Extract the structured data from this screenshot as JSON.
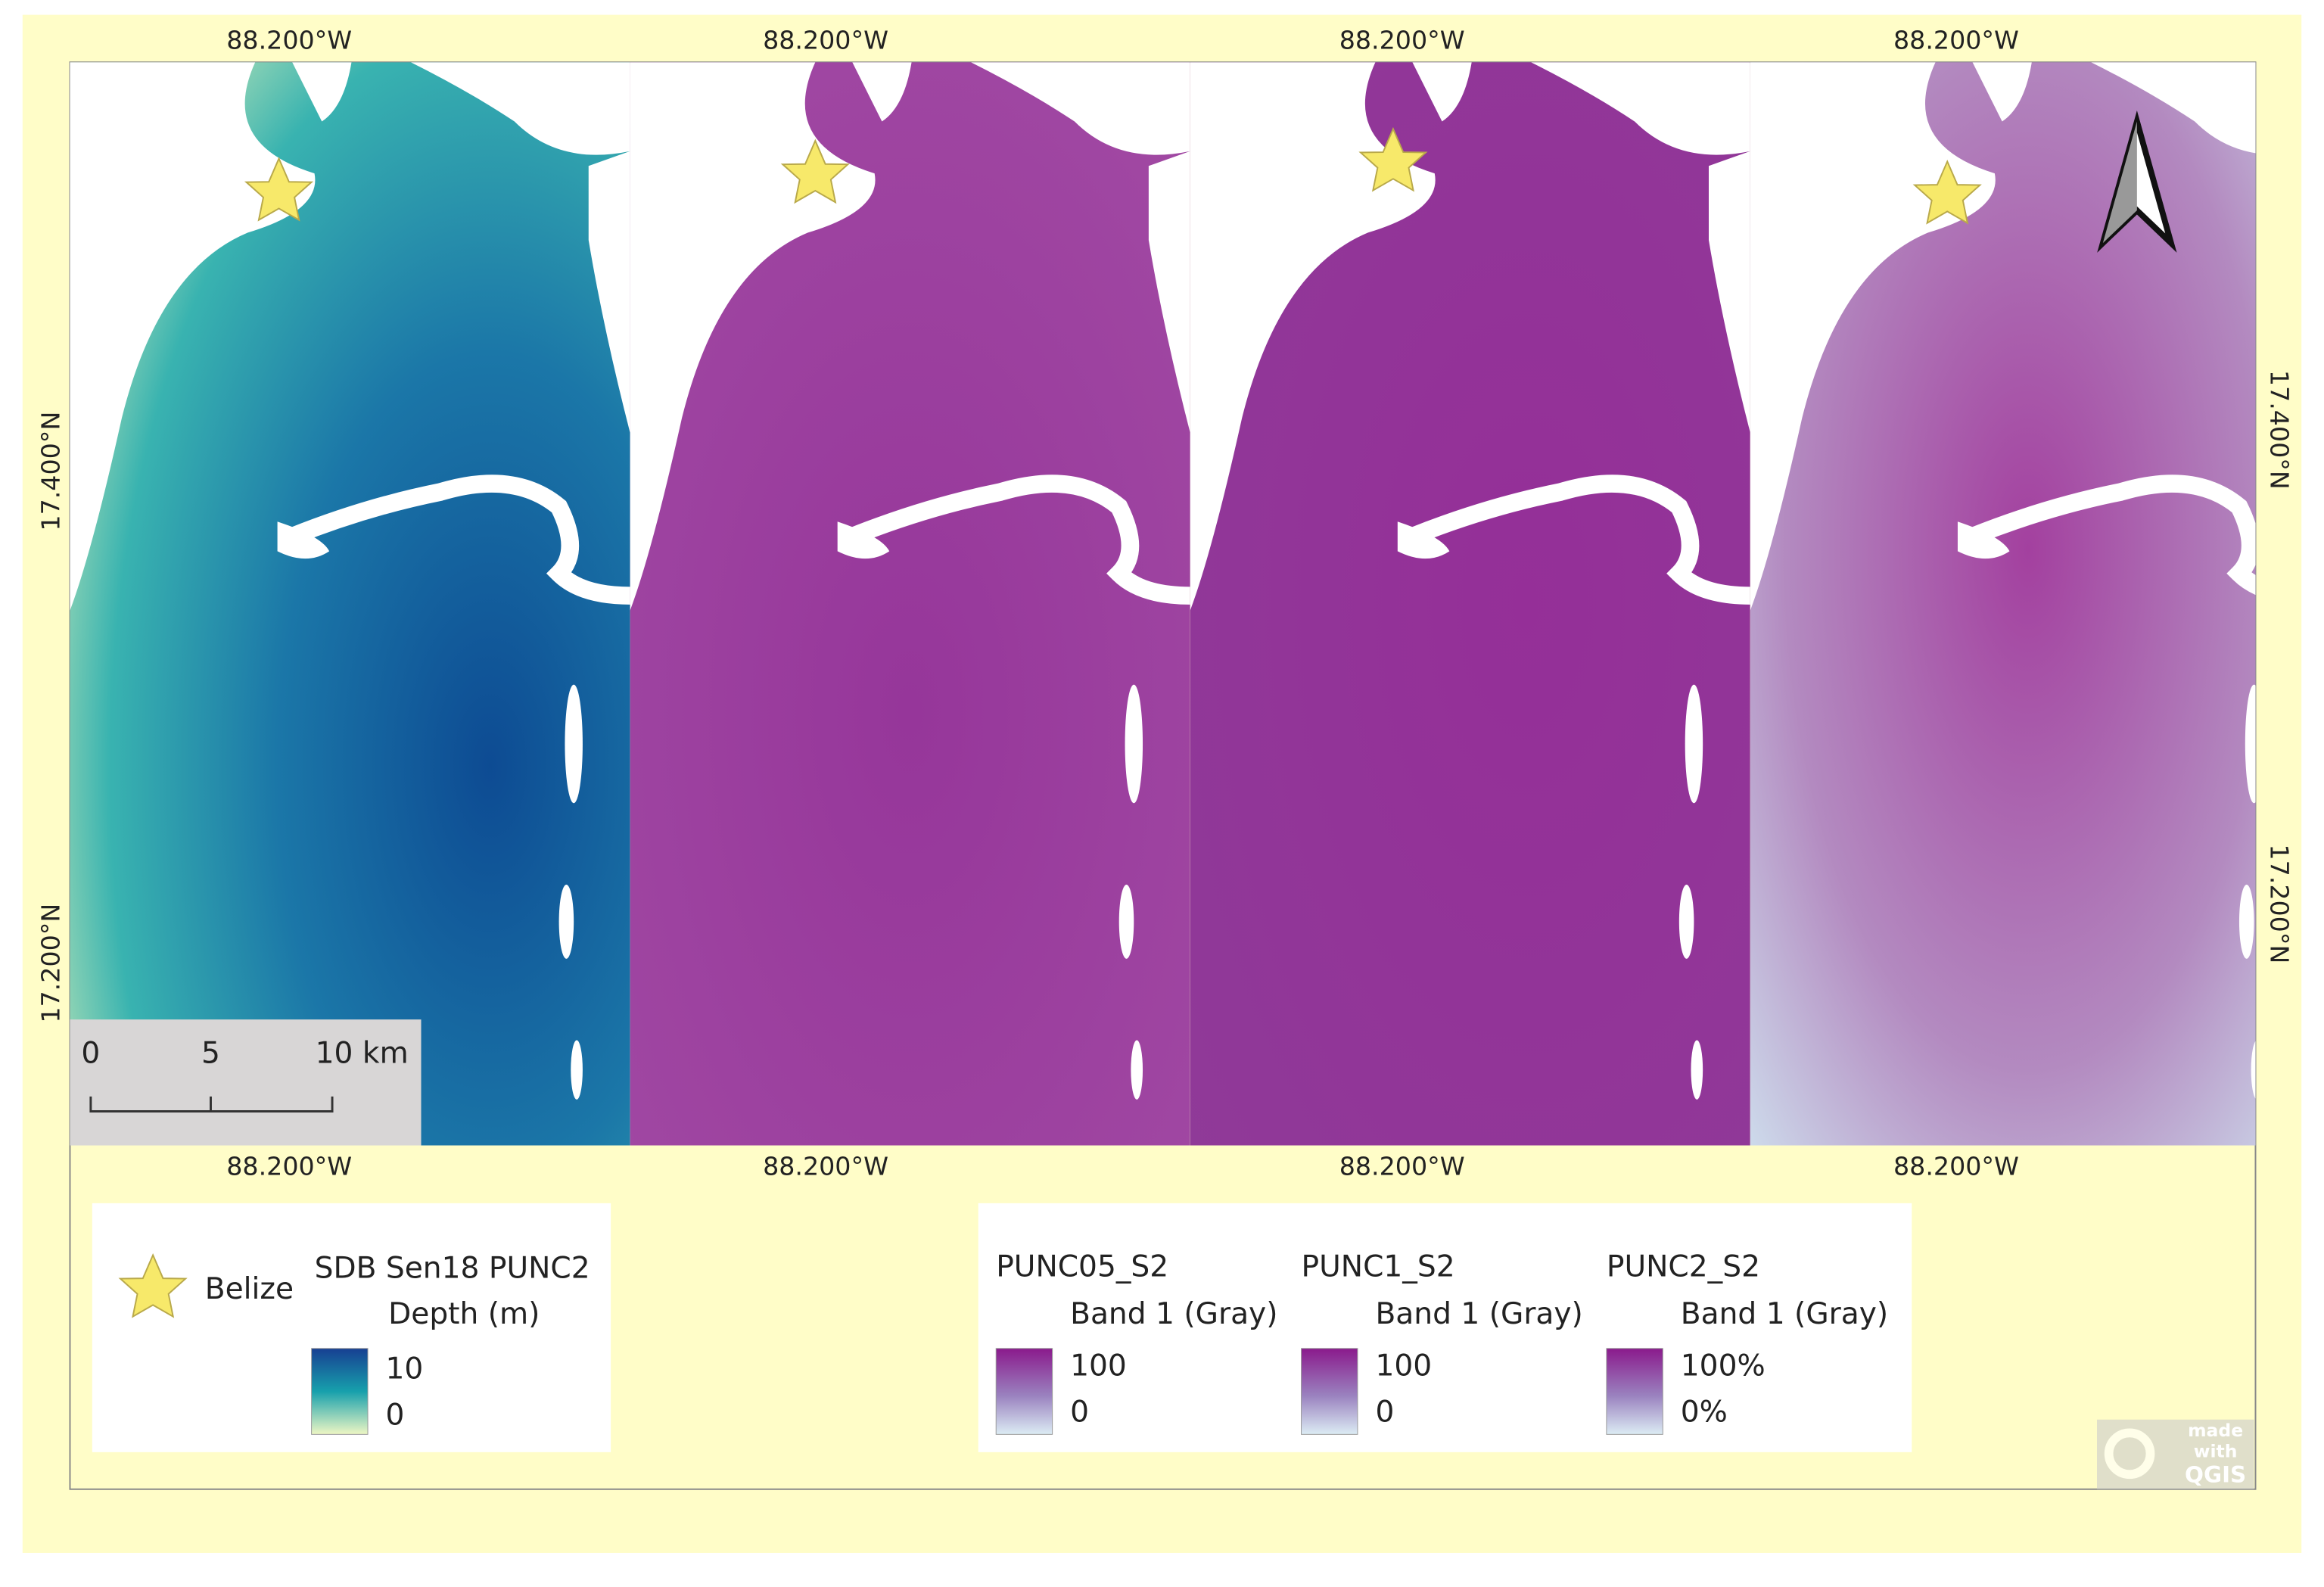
{
  "map": {
    "top_labels": [
      "88.200°W",
      "88.200°W",
      "88.200°W",
      "88.200°W"
    ],
    "bottom_labels": [
      "88.200°W",
      "88.200°W",
      "88.200°W",
      "88.200°W"
    ],
    "left_labels": [
      "17.400°N",
      "17.200°N"
    ],
    "right_labels": [
      "17.400°N",
      "17.200°N"
    ],
    "scale_bar": [
      "0",
      "5",
      "10 km"
    ]
  },
  "legend_depth": {
    "symbol_label": "Belize",
    "layer": "SDB Sen18 PUNC2",
    "band": "Depth (m)",
    "max": 10,
    "min": 0
  },
  "legend_uncertainty": [
    {
      "layer": "PUNC05_S2",
      "band": "Band 1 (Gray)",
      "max": 100,
      "min": 0
    },
    {
      "layer": "PUNC1_S2",
      "band": "Band 1 (Gray)",
      "max": 100,
      "min": 0
    },
    {
      "layer": "PUNC2_S2",
      "band": "Band 1 (Gray)",
      "max": "100%",
      "min": "0%"
    }
  ],
  "logo": [
    "made",
    "with",
    "QGIS"
  ]
}
